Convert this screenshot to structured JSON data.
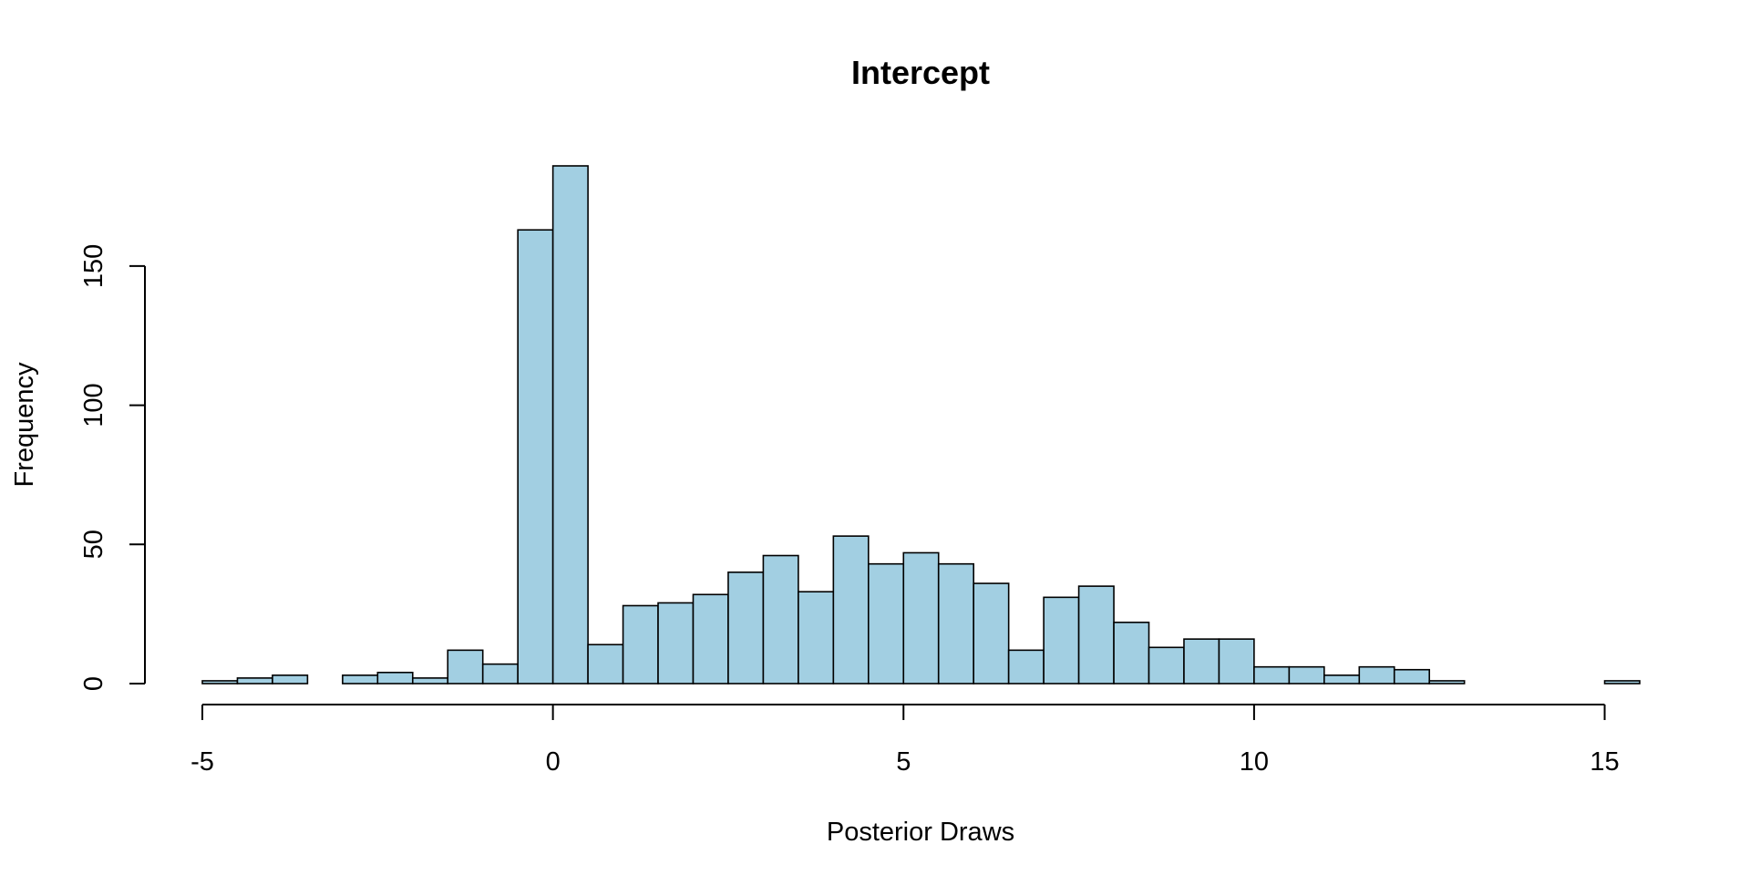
{
  "chart_data": {
    "type": "bar",
    "subtype": "histogram",
    "title": "Intercept",
    "xlabel": "Posterior Draws",
    "ylabel": "Frequency",
    "bar_color": "#A2CFE2",
    "border_color": "#000000",
    "bin_width": 0.5,
    "bins_start": [
      -5,
      -4.5,
      -4,
      -3.5,
      -3,
      -2.5,
      -2,
      -1.5,
      -1,
      -0.5,
      0,
      0.5,
      1,
      1.5,
      2,
      2.5,
      3,
      3.5,
      4,
      4.5,
      5,
      5.5,
      6,
      6.5,
      7,
      7.5,
      8,
      8.5,
      9,
      9.5,
      10,
      10.5,
      11,
      11.5,
      12,
      12.5,
      13,
      13.5,
      14,
      14.5,
      15
    ],
    "values": [
      1,
      2,
      3,
      0,
      3,
      4,
      2,
      12,
      7,
      163,
      186,
      14,
      28,
      29,
      32,
      40,
      46,
      33,
      53,
      43,
      47,
      43,
      36,
      12,
      31,
      35,
      22,
      13,
      16,
      16,
      6,
      6,
      3,
      6,
      5,
      1,
      0,
      0,
      0,
      0,
      1
    ],
    "xlim": [
      -5,
      15.5
    ],
    "ylim": [
      0,
      186
    ],
    "x_ticks": [
      -5,
      0,
      5,
      10,
      15
    ],
    "x_tick_labels": [
      "-5",
      "0",
      "5",
      "10",
      "15"
    ],
    "y_ticks": [
      0,
      50,
      100,
      150
    ],
    "y_tick_labels": [
      "0",
      "50",
      "100",
      "150"
    ],
    "grid": false,
    "legend": "none"
  }
}
